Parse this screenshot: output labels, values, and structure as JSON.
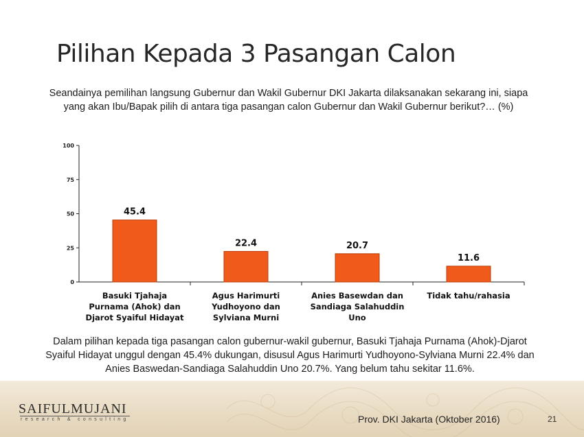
{
  "slide": {
    "title": "Pilihan Kepada 3 Pasangan Calon",
    "question": "Seandainya pemilihan langsung Gubernur dan Wakil Gubernur DKI Jakarta dilaksanakan sekarang ini, siapa yang akan Ibu/Bapak pilih di antara tiga pasangan calon Gubernur dan Wakil Gubernur berikut?… (%)",
    "summary": "Dalam pilihan kepada tiga pasangan calon gubernur-wakil gubernur, Basuki Tjahaja Purnama (Ahok)-Djarot Syaiful Hidayat unggul dengan 45.4% dukungan, disusul Agus Harimurti Yudhoyono-Sylviana Murni 22.4% dan Anies Baswedan-Sandiaga Salahuddin Uno 20.7%. Yang belum tahu sekitar 11.6%.",
    "logo_main": "SAIFULMUJANI",
    "logo_sub": "research & consulting",
    "source": "Prov. DKI Jakarta (Oktober 2016)",
    "page_number": "21"
  },
  "colors": {
    "bar": "#f05a1a",
    "bar_edge": "#b93c08",
    "axis": "#222222"
  },
  "chart_data": {
    "type": "bar",
    "categories": [
      [
        "Basuki Tjahaja",
        "Purnama (Ahok) dan",
        "Djarot Syaiful Hidayat"
      ],
      [
        "Agus Harimurti",
        "Yudhoyono dan",
        "Sylviana Murni"
      ],
      [
        "Anies Basewdan dan",
        "Sandiaga Salahuddin",
        "Uno"
      ],
      [
        "Tidak tahu/rahasia"
      ]
    ],
    "values": [
      45.4,
      22.4,
      20.7,
      11.6
    ],
    "ylim": [
      0,
      100
    ],
    "yticks": [
      0,
      25,
      50,
      75,
      100
    ],
    "grid": false,
    "data_labels": true
  }
}
